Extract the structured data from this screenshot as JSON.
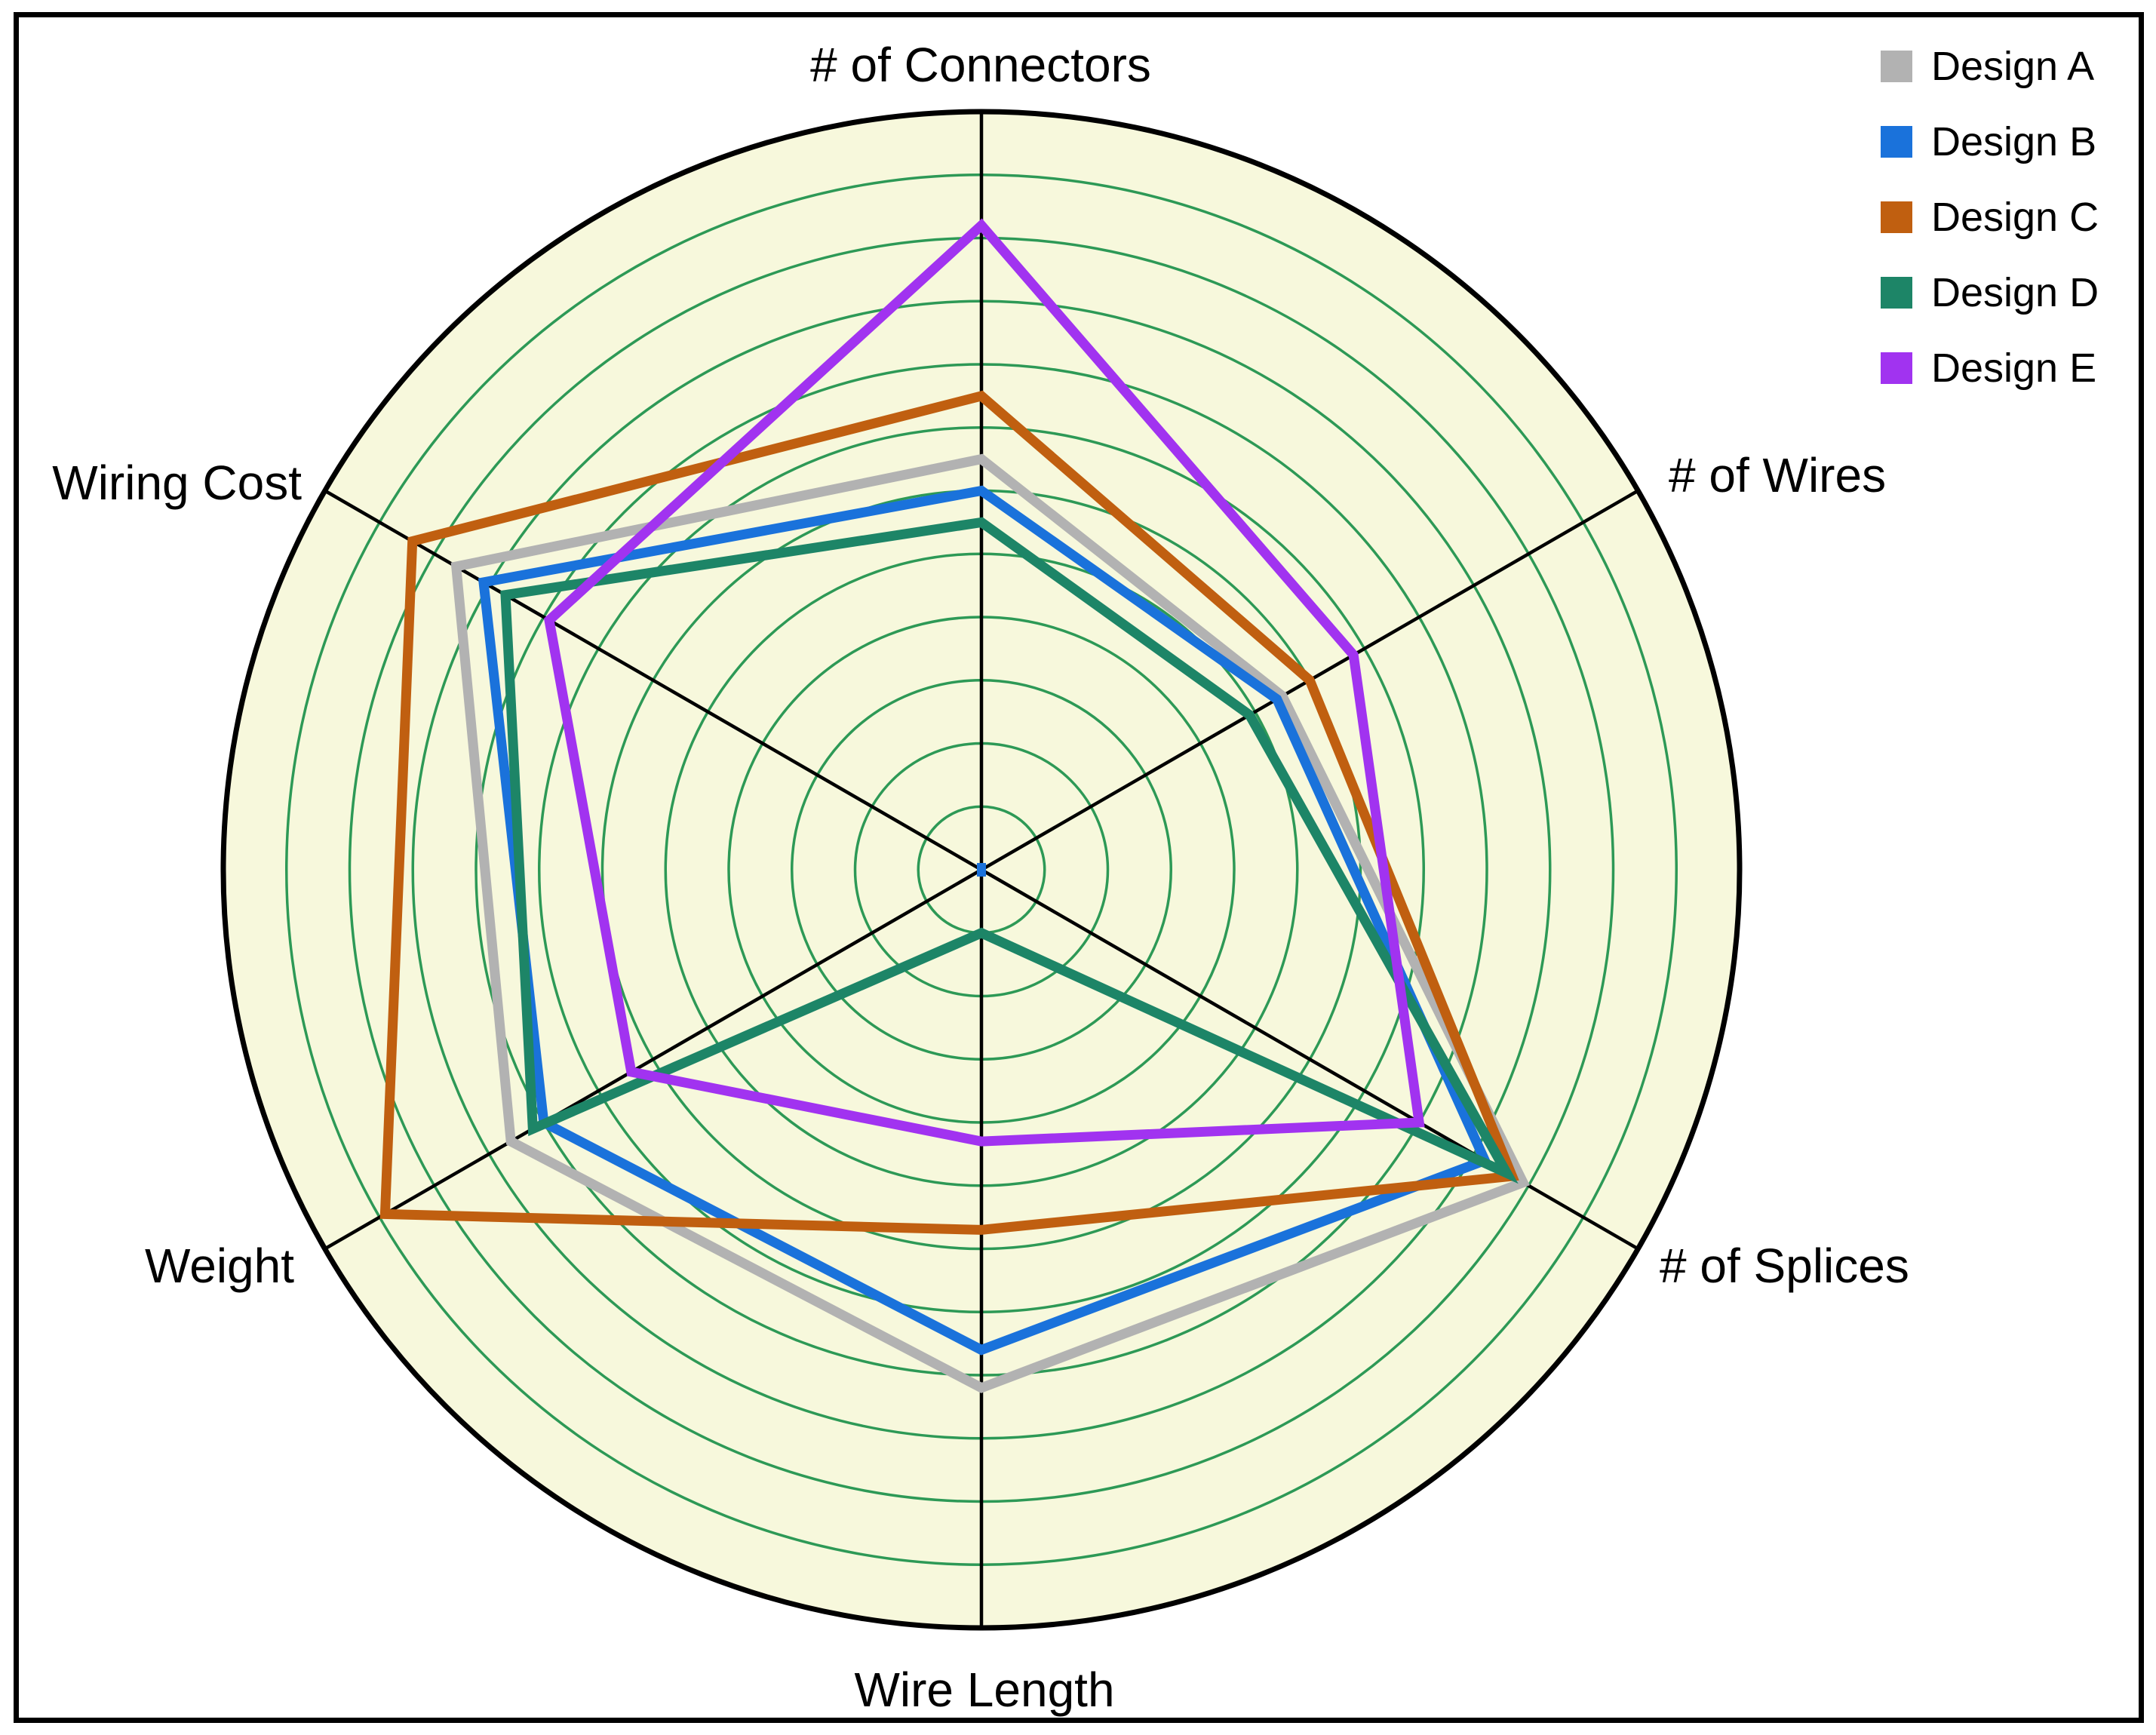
{
  "chart_data": {
    "type": "radar",
    "categories": [
      "# of Connectors",
      "# of Wires",
      "# of Splices",
      "Wire Length",
      "Weight",
      "Wiring Cost"
    ],
    "series": [
      {
        "name": "Design A",
        "color": "#b2b2b2",
        "values": [
          6.5,
          5.5,
          9.9,
          8.2,
          8.6,
          9.6
        ]
      },
      {
        "name": "Design B",
        "color": "#1a72db",
        "values": [
          6.0,
          5.4,
          9.2,
          7.6,
          8.0,
          9.1
        ]
      },
      {
        "name": "Design C",
        "color": "#c05f10",
        "values": [
          7.5,
          6.0,
          9.7,
          5.7,
          10.9,
          10.4
        ]
      },
      {
        "name": "Design D",
        "color": "#1d8567",
        "values": [
          5.5,
          4.9,
          9.6,
          1.0,
          8.2,
          8.7
        ]
      },
      {
        "name": "Design E",
        "color": "#a133f0",
        "values": [
          10.2,
          6.8,
          8.0,
          4.3,
          6.4,
          7.9
        ]
      }
    ],
    "r_min": 0,
    "r_max": 12,
    "gridline_count": 11,
    "grid_on": true,
    "legend_position": "top-right",
    "axis_angles_deg": [
      90,
      30,
      -30,
      -90,
      -150,
      150
    ],
    "styles": {
      "plot_background": "#f7f8dc",
      "gridline_color": "#2d9956",
      "axis_color": "#000000",
      "outer_ring_color": "#000000",
      "center_marker_color": "#1a72db",
      "label_color": "#000000"
    },
    "geometry": {
      "center_x": 1301,
      "center_y": 1153,
      "radius_px": 1005
    }
  }
}
